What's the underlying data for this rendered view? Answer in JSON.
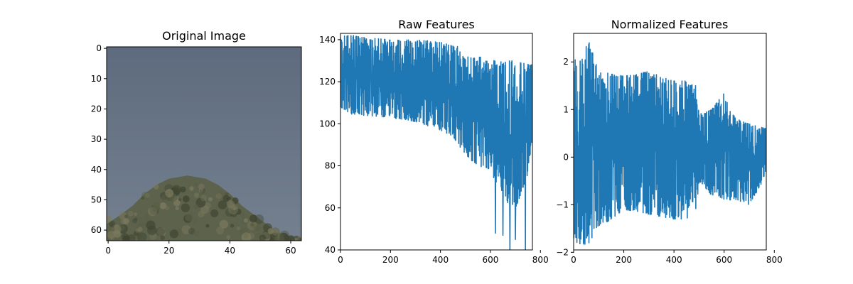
{
  "figure": {
    "background": "#ffffff"
  },
  "chart_data": [
    {
      "type": "image",
      "title": "Original Image",
      "xlabel": "",
      "ylabel": "",
      "xlim": [
        -0.5,
        63.5
      ],
      "ylim": [
        63.5,
        -0.5
      ],
      "x_ticks": [
        0,
        20,
        40,
        60
      ],
      "y_ticks": [
        0,
        10,
        20,
        30,
        40,
        50,
        60
      ],
      "grid": false,
      "image_colors": {
        "sky_top": "#5e6b7e",
        "sky_mid": "#6a7788",
        "sky_bottom": "#74808e",
        "foliage_dark": "#3e4431",
        "foliage_mid": "#5a5f45",
        "foliage_light": "#7d7a5e"
      }
    },
    {
      "type": "line",
      "title": "Raw Features",
      "xlabel": "",
      "ylabel": "",
      "xlim": [
        0,
        768
      ],
      "ylim": [
        40,
        143
      ],
      "x_ticks": [
        0,
        200,
        400,
        600,
        800
      ],
      "y_ticks": [
        40,
        60,
        80,
        100,
        120,
        140
      ],
      "grid": false,
      "series": [
        {
          "color": "#1f77b4",
          "n_points": 768,
          "upper_envelope": [
            [
              0,
              142
            ],
            [
              50,
              142
            ],
            [
              100,
              141
            ],
            [
              200,
              140
            ],
            [
              300,
              140
            ],
            [
              400,
              139
            ],
            [
              450,
              137
            ],
            [
              470,
              137
            ],
            [
              480,
              136
            ],
            [
              500,
              133
            ],
            [
              550,
              132
            ],
            [
              600,
              131
            ],
            [
              650,
              130
            ],
            [
              700,
              130
            ],
            [
              767,
              128
            ]
          ],
          "lower_envelope": [
            [
              0,
              108
            ],
            [
              50,
              104
            ],
            [
              100,
              104
            ],
            [
              200,
              103
            ],
            [
              300,
              101
            ],
            [
              400,
              97
            ],
            [
              450,
              94
            ],
            [
              500,
              85
            ],
            [
              550,
              80
            ],
            [
              600,
              78
            ],
            [
              650,
              64
            ],
            [
              700,
              60
            ],
            [
              767,
              79
            ]
          ],
          "min_dips": [
            [
              620,
              48
            ],
            [
              650,
              47
            ],
            [
              678,
              40
            ],
            [
              700,
              45
            ],
            [
              740,
              40
            ]
          ]
        }
      ]
    },
    {
      "type": "line",
      "title": "Normalized Features",
      "xlabel": "",
      "ylabel": "",
      "xlim": [
        0,
        768
      ],
      "ylim": [
        -1.95,
        2.6
      ],
      "x_ticks": [
        0,
        200,
        400,
        600,
        800
      ],
      "y_ticks": [
        -2,
        -1,
        0,
        1,
        2
      ],
      "grid": false,
      "series": [
        {
          "color": "#1f77b4",
          "n_points": 768,
          "upper_envelope": [
            [
              0,
              2.0
            ],
            [
              60,
              2.45
            ],
            [
              100,
              1.8
            ],
            [
              200,
              1.7
            ],
            [
              300,
              1.8
            ],
            [
              400,
              1.6
            ],
            [
              450,
              1.6
            ],
            [
              490,
              1.5
            ],
            [
              500,
              0.9
            ],
            [
              550,
              1.0
            ],
            [
              600,
              1.35
            ],
            [
              650,
              0.8
            ],
            [
              700,
              0.7
            ],
            [
              767,
              0.6
            ]
          ],
          "lower_envelope": [
            [
              0,
              -1.8
            ],
            [
              60,
              -1.85
            ],
            [
              100,
              -1.5
            ],
            [
              200,
              -1.1
            ],
            [
              300,
              -1.2
            ],
            [
              400,
              -1.3
            ],
            [
              450,
              -1.3
            ],
            [
              490,
              -1.1
            ],
            [
              500,
              -0.5
            ],
            [
              550,
              -0.8
            ],
            [
              600,
              -0.9
            ],
            [
              650,
              -0.9
            ],
            [
              700,
              -1.0
            ],
            [
              767,
              -0.4
            ]
          ]
        }
      ]
    }
  ]
}
